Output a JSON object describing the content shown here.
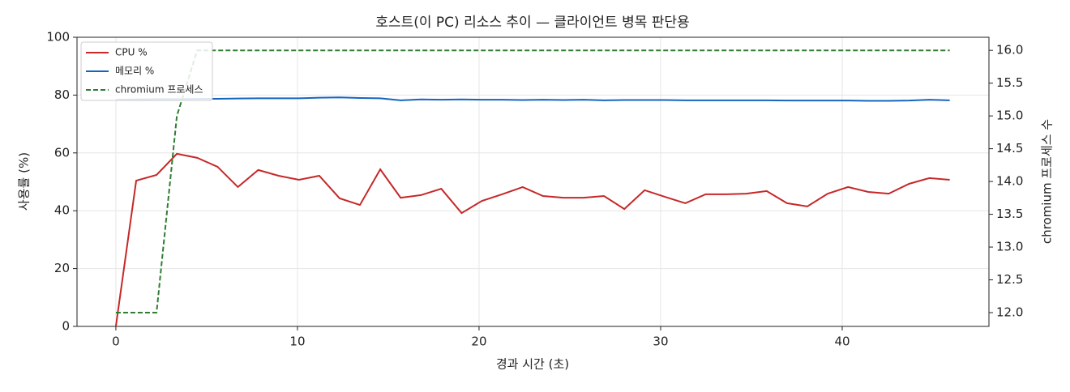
{
  "chart_data": {
    "type": "line",
    "title": "호스트(이 PC) 리소스 추이 — 클라이언트 병목 판단용",
    "x_label": "경과 시간 (초)",
    "y_label": "사용률 (%)",
    "y2_label": "chromium 프로세스 수",
    "x": [
      0,
      1.12,
      2.24,
      3.36,
      4.48,
      5.6,
      6.72,
      7.84,
      8.96,
      10.08,
      11.2,
      12.32,
      13.44,
      14.56,
      15.68,
      16.8,
      17.92,
      19.04,
      20.16,
      21.28,
      22.4,
      23.52,
      24.64,
      25.76,
      26.88,
      28.0,
      29.12,
      30.24,
      31.36,
      32.48,
      33.6,
      34.72,
      35.84,
      36.96,
      38.08,
      39.2,
      40.32,
      41.44,
      42.56,
      43.68,
      44.8,
      45.92
    ],
    "series": [
      {
        "name": "CPU %",
        "color": "#c62828",
        "linestyle": "solid",
        "values": [
          0,
          50.4,
          52.4,
          59.7,
          58.3,
          55.2,
          48.2,
          54.1,
          52.1,
          50.7,
          52.1,
          44.3,
          42.0,
          54.3,
          44.5,
          45.4,
          47.6,
          39.2,
          43.4,
          45.7,
          48.2,
          45.1,
          44.5,
          44.5,
          45.1,
          40.6,
          47.1,
          44.8,
          42.6,
          45.7,
          45.7,
          45.9,
          46.8,
          42.6,
          41.5,
          45.9,
          48.2,
          46.5,
          45.9,
          49.3,
          51.3,
          50.7
        ]
      },
      {
        "name": "메모리 %",
        "color": "#1565c0",
        "linestyle": "solid",
        "values": [
          78.4,
          78.5,
          78.6,
          78.6,
          78.7,
          78.7,
          78.8,
          78.9,
          78.9,
          78.9,
          79.1,
          79.2,
          79.0,
          78.9,
          78.2,
          78.5,
          78.4,
          78.5,
          78.4,
          78.4,
          78.3,
          78.4,
          78.3,
          78.4,
          78.2,
          78.3,
          78.3,
          78.3,
          78.2,
          78.2,
          78.2,
          78.2,
          78.2,
          78.1,
          78.1,
          78.1,
          78.1,
          78.0,
          78.0,
          78.1,
          78.4,
          78.2
        ]
      },
      {
        "name": "chromium 프로세스",
        "color": "#2e7d32",
        "linestyle": "dashed",
        "axis": "y2",
        "values": [
          12,
          12,
          12,
          15,
          16,
          16,
          16,
          16,
          16,
          16,
          16,
          16,
          16,
          16,
          16,
          16,
          16,
          16,
          16,
          16,
          16,
          16,
          16,
          16,
          16,
          16,
          16,
          16,
          16,
          16,
          16,
          16,
          16,
          16,
          16,
          16,
          16,
          16,
          16,
          16,
          16,
          16
        ]
      }
    ],
    "xlim": [
      -2.14,
      48.08
    ],
    "xticks": [
      0,
      10,
      20,
      30,
      40
    ],
    "ylim": [
      0,
      100
    ],
    "yticks": [
      0,
      20,
      40,
      60,
      80,
      100
    ],
    "y2lim": [
      11.79,
      16.2
    ],
    "y2ticks": [
      {
        "value": 12,
        "label": "12.0"
      },
      12.5,
      {
        "value": 13,
        "label": "13.0"
      },
      13.5,
      {
        "value": 14,
        "label": "14.0"
      },
      14.5,
      {
        "value": 15,
        "label": "15.0"
      },
      15.5,
      {
        "value": 16,
        "label": "16.0"
      }
    ],
    "grid": true,
    "legend": "upper-left"
  }
}
